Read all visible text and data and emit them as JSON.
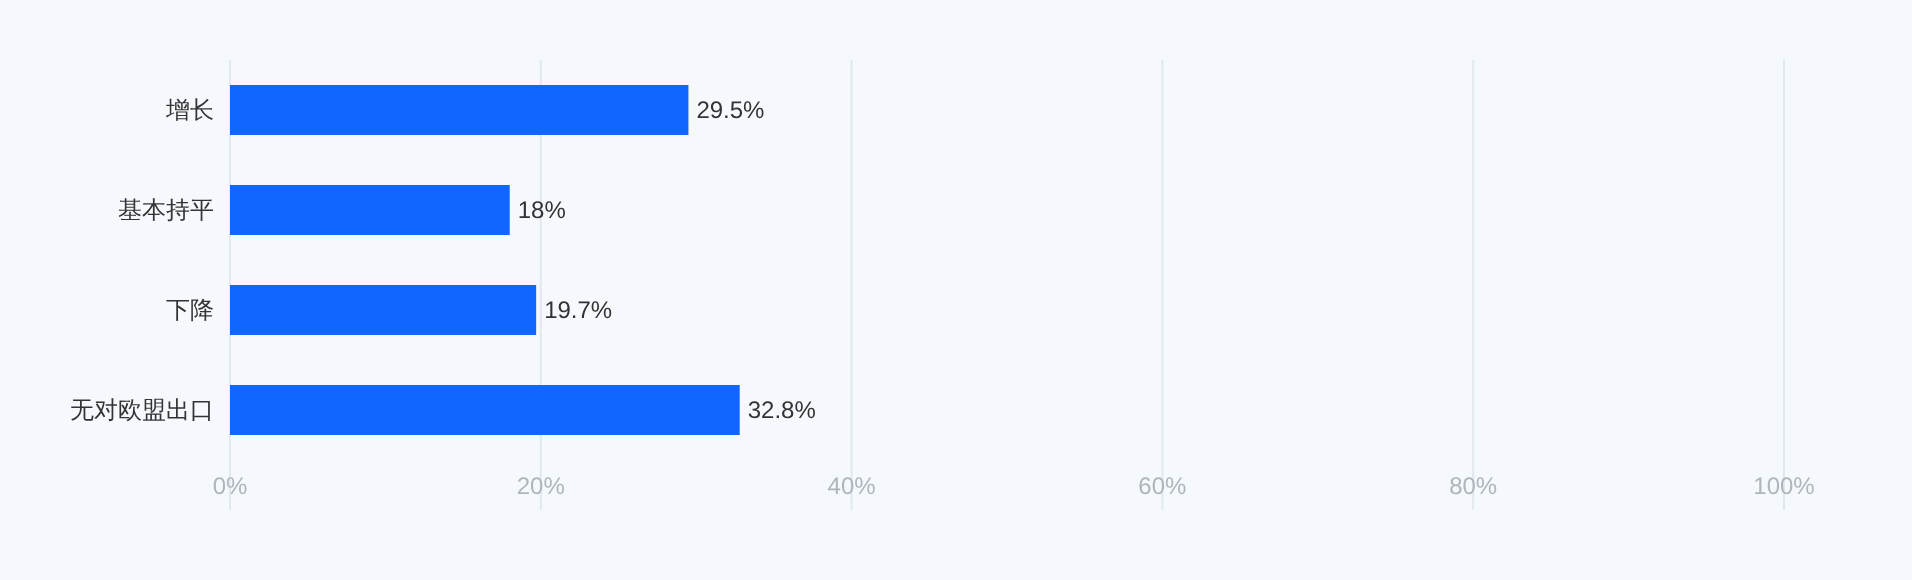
{
  "chart_data": {
    "type": "bar",
    "orientation": "horizontal",
    "categories": [
      "增长",
      "基本持平",
      "下降",
      "无对欧盟出口"
    ],
    "values": [
      29.5,
      18,
      19.7,
      32.8
    ],
    "value_labels": [
      "29.5%",
      "18%",
      "19.7%",
      "32.8%"
    ],
    "color": "#1166ff",
    "xlim": [
      0,
      100
    ],
    "xticks": [
      {
        "value": 0,
        "label": "0%"
      },
      {
        "value": 20,
        "label": "20%"
      },
      {
        "value": 40,
        "label": "40%"
      },
      {
        "value": 60,
        "label": "60%"
      },
      {
        "value": 80,
        "label": "80%"
      },
      {
        "value": 100,
        "label": "100%"
      }
    ],
    "grid": "x"
  }
}
